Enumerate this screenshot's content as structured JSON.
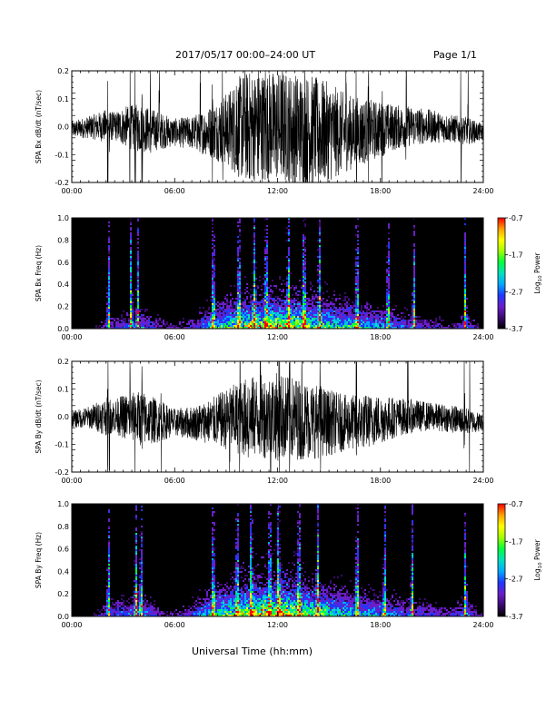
{
  "header": {
    "title": "2017/05/17  00:00–24:00 UT",
    "page": "Page 1/1"
  },
  "x_axis_title": "Universal Time (hh:mm)",
  "colors": {
    "trace": "#000000",
    "spectrogram_background": "#000000",
    "colormap": [
      "#000000",
      "#3a0a6e",
      "#6a1fc8",
      "#2038ff",
      "#00a8ff",
      "#00e0c0",
      "#00ff3c",
      "#a0ff00",
      "#ffff00",
      "#ffa000",
      "#ff0000"
    ]
  },
  "colorbar": {
    "label_prefix": "Log",
    "label_sub": "10",
    "label_suffix": " Power",
    "ticks": [
      "-0.7",
      "-1.7",
      "-2.7",
      "-3.7"
    ],
    "range": [
      -3.7,
      -0.7
    ]
  },
  "chart_data": [
    {
      "type": "line",
      "id": "bx-trace",
      "ylabel": "SPA Bx dB/dt (nT/sec)",
      "xlim": [
        0,
        24
      ],
      "ylim": [
        -0.2,
        0.2
      ],
      "x_ticks": [
        "00:00",
        "06:00",
        "12:00",
        "18:00",
        "24:00"
      ],
      "y_ticks": [
        "-0.2",
        "-0.1",
        "0.0",
        "0.1",
        "0.2"
      ],
      "amplitude_envelope": {
        "hours": [
          0,
          1,
          2,
          2.5,
          3,
          4,
          5,
          6,
          7,
          8,
          9,
          10,
          11,
          12,
          13,
          14,
          15,
          16,
          17,
          18,
          19,
          20,
          21,
          22,
          23,
          24
        ],
        "amp": [
          0.03,
          0.04,
          0.06,
          0.05,
          0.07,
          0.09,
          0.07,
          0.05,
          0.06,
          0.09,
          0.13,
          0.2,
          0.2,
          0.2,
          0.2,
          0.2,
          0.18,
          0.14,
          0.12,
          0.1,
          0.08,
          0.07,
          0.06,
          0.05,
          0.05,
          0.03
        ]
      },
      "saturated_spikes_hours": [
        2.1,
        2.2,
        3.4,
        3.7,
        4.1,
        4.6,
        5.1,
        7.5,
        8.2,
        8.8,
        9.6,
        10.1,
        10.4,
        10.9,
        11.3,
        11.8,
        12.3,
        12.9,
        13.6,
        14.4,
        15.2,
        16.0,
        16.6,
        17.3,
        18.1,
        19.5,
        22.7,
        23.1
      ]
    },
    {
      "type": "heatmap",
      "id": "bx-spectrogram",
      "ylabel": "SPA Bx Freq (Hz)",
      "xlim": [
        0,
        24
      ],
      "ylim": [
        0,
        1.0
      ],
      "x_ticks": [
        "00:00",
        "06:00",
        "12:00",
        "18:00",
        "24:00"
      ],
      "y_ticks": [
        "0.0",
        "0.2",
        "0.4",
        "0.6",
        "0.8",
        "1.0"
      ],
      "activity_hours": [
        0,
        1,
        2,
        3,
        4,
        5,
        6,
        7,
        8,
        9,
        10,
        11,
        12,
        13,
        14,
        15,
        16,
        17,
        18,
        19,
        20,
        21,
        22,
        23,
        24
      ],
      "activity_level": [
        0.15,
        0.15,
        0.25,
        0.3,
        0.35,
        0.25,
        0.2,
        0.25,
        0.45,
        0.55,
        0.65,
        0.7,
        0.75,
        0.7,
        0.6,
        0.55,
        0.5,
        0.45,
        0.4,
        0.35,
        0.3,
        0.25,
        0.2,
        0.3,
        0.15
      ],
      "broadband_bursts_hours": [
        2.1,
        3.4,
        3.8,
        8.2,
        9.7,
        10.6,
        11.3,
        12.6,
        13.5,
        14.4,
        16.6,
        18.4,
        19.9,
        22.9
      ]
    },
    {
      "type": "line",
      "id": "by-trace",
      "ylabel": "SPA By dB/dt (nT/sec)",
      "xlim": [
        0,
        24
      ],
      "ylim": [
        -0.2,
        0.2
      ],
      "x_ticks": [
        "00:00",
        "06:00",
        "12:00",
        "18:00",
        "24:00"
      ],
      "y_ticks": [
        "-0.2",
        "-0.1",
        "0.0",
        "0.1",
        "0.2"
      ],
      "amplitude_envelope": {
        "hours": [
          0,
          1,
          2,
          2.5,
          3,
          4,
          5,
          6,
          7,
          8,
          9,
          10,
          11,
          12,
          13,
          14,
          15,
          16,
          17,
          18,
          19,
          20,
          21,
          22,
          23,
          24
        ],
        "amp": [
          0.03,
          0.04,
          0.07,
          0.06,
          0.08,
          0.1,
          0.08,
          0.05,
          0.06,
          0.08,
          0.11,
          0.14,
          0.15,
          0.16,
          0.15,
          0.14,
          0.12,
          0.1,
          0.1,
          0.09,
          0.07,
          0.06,
          0.05,
          0.05,
          0.05,
          0.03
        ]
      },
      "saturated_spikes_hours": [
        2.1,
        2.2,
        3.4,
        3.7,
        4.1,
        5.2,
        9.2,
        9.8,
        10.3,
        11.0,
        11.6,
        12.1,
        12.7,
        13.4,
        14.5,
        16.6,
        19.6,
        22.9,
        23.2
      ]
    },
    {
      "type": "heatmap",
      "id": "by-spectrogram",
      "ylabel": "SPA By Freq (Hz)",
      "xlim": [
        0,
        24
      ],
      "ylim": [
        0,
        1.0
      ],
      "x_ticks": [
        "00:00",
        "06:00",
        "12:00",
        "18:00",
        "24:00"
      ],
      "y_ticks": [
        "0.0",
        "0.2",
        "0.4",
        "0.6",
        "0.8",
        "1.0"
      ],
      "activity_hours": [
        0,
        1,
        2,
        3,
        4,
        5,
        6,
        7,
        8,
        9,
        10,
        11,
        12,
        13,
        14,
        15,
        16,
        17,
        18,
        19,
        20,
        21,
        22,
        23,
        24
      ],
      "activity_level": [
        0.15,
        0.15,
        0.3,
        0.35,
        0.4,
        0.25,
        0.2,
        0.3,
        0.5,
        0.6,
        0.7,
        0.75,
        0.8,
        0.75,
        0.65,
        0.55,
        0.5,
        0.45,
        0.4,
        0.35,
        0.3,
        0.3,
        0.25,
        0.35,
        0.15
      ],
      "broadband_bursts_hours": [
        2.1,
        3.7,
        4.0,
        8.2,
        9.6,
        10.4,
        11.5,
        12.0,
        13.2,
        14.3,
        16.6,
        18.2,
        19.8,
        22.9
      ]
    }
  ]
}
